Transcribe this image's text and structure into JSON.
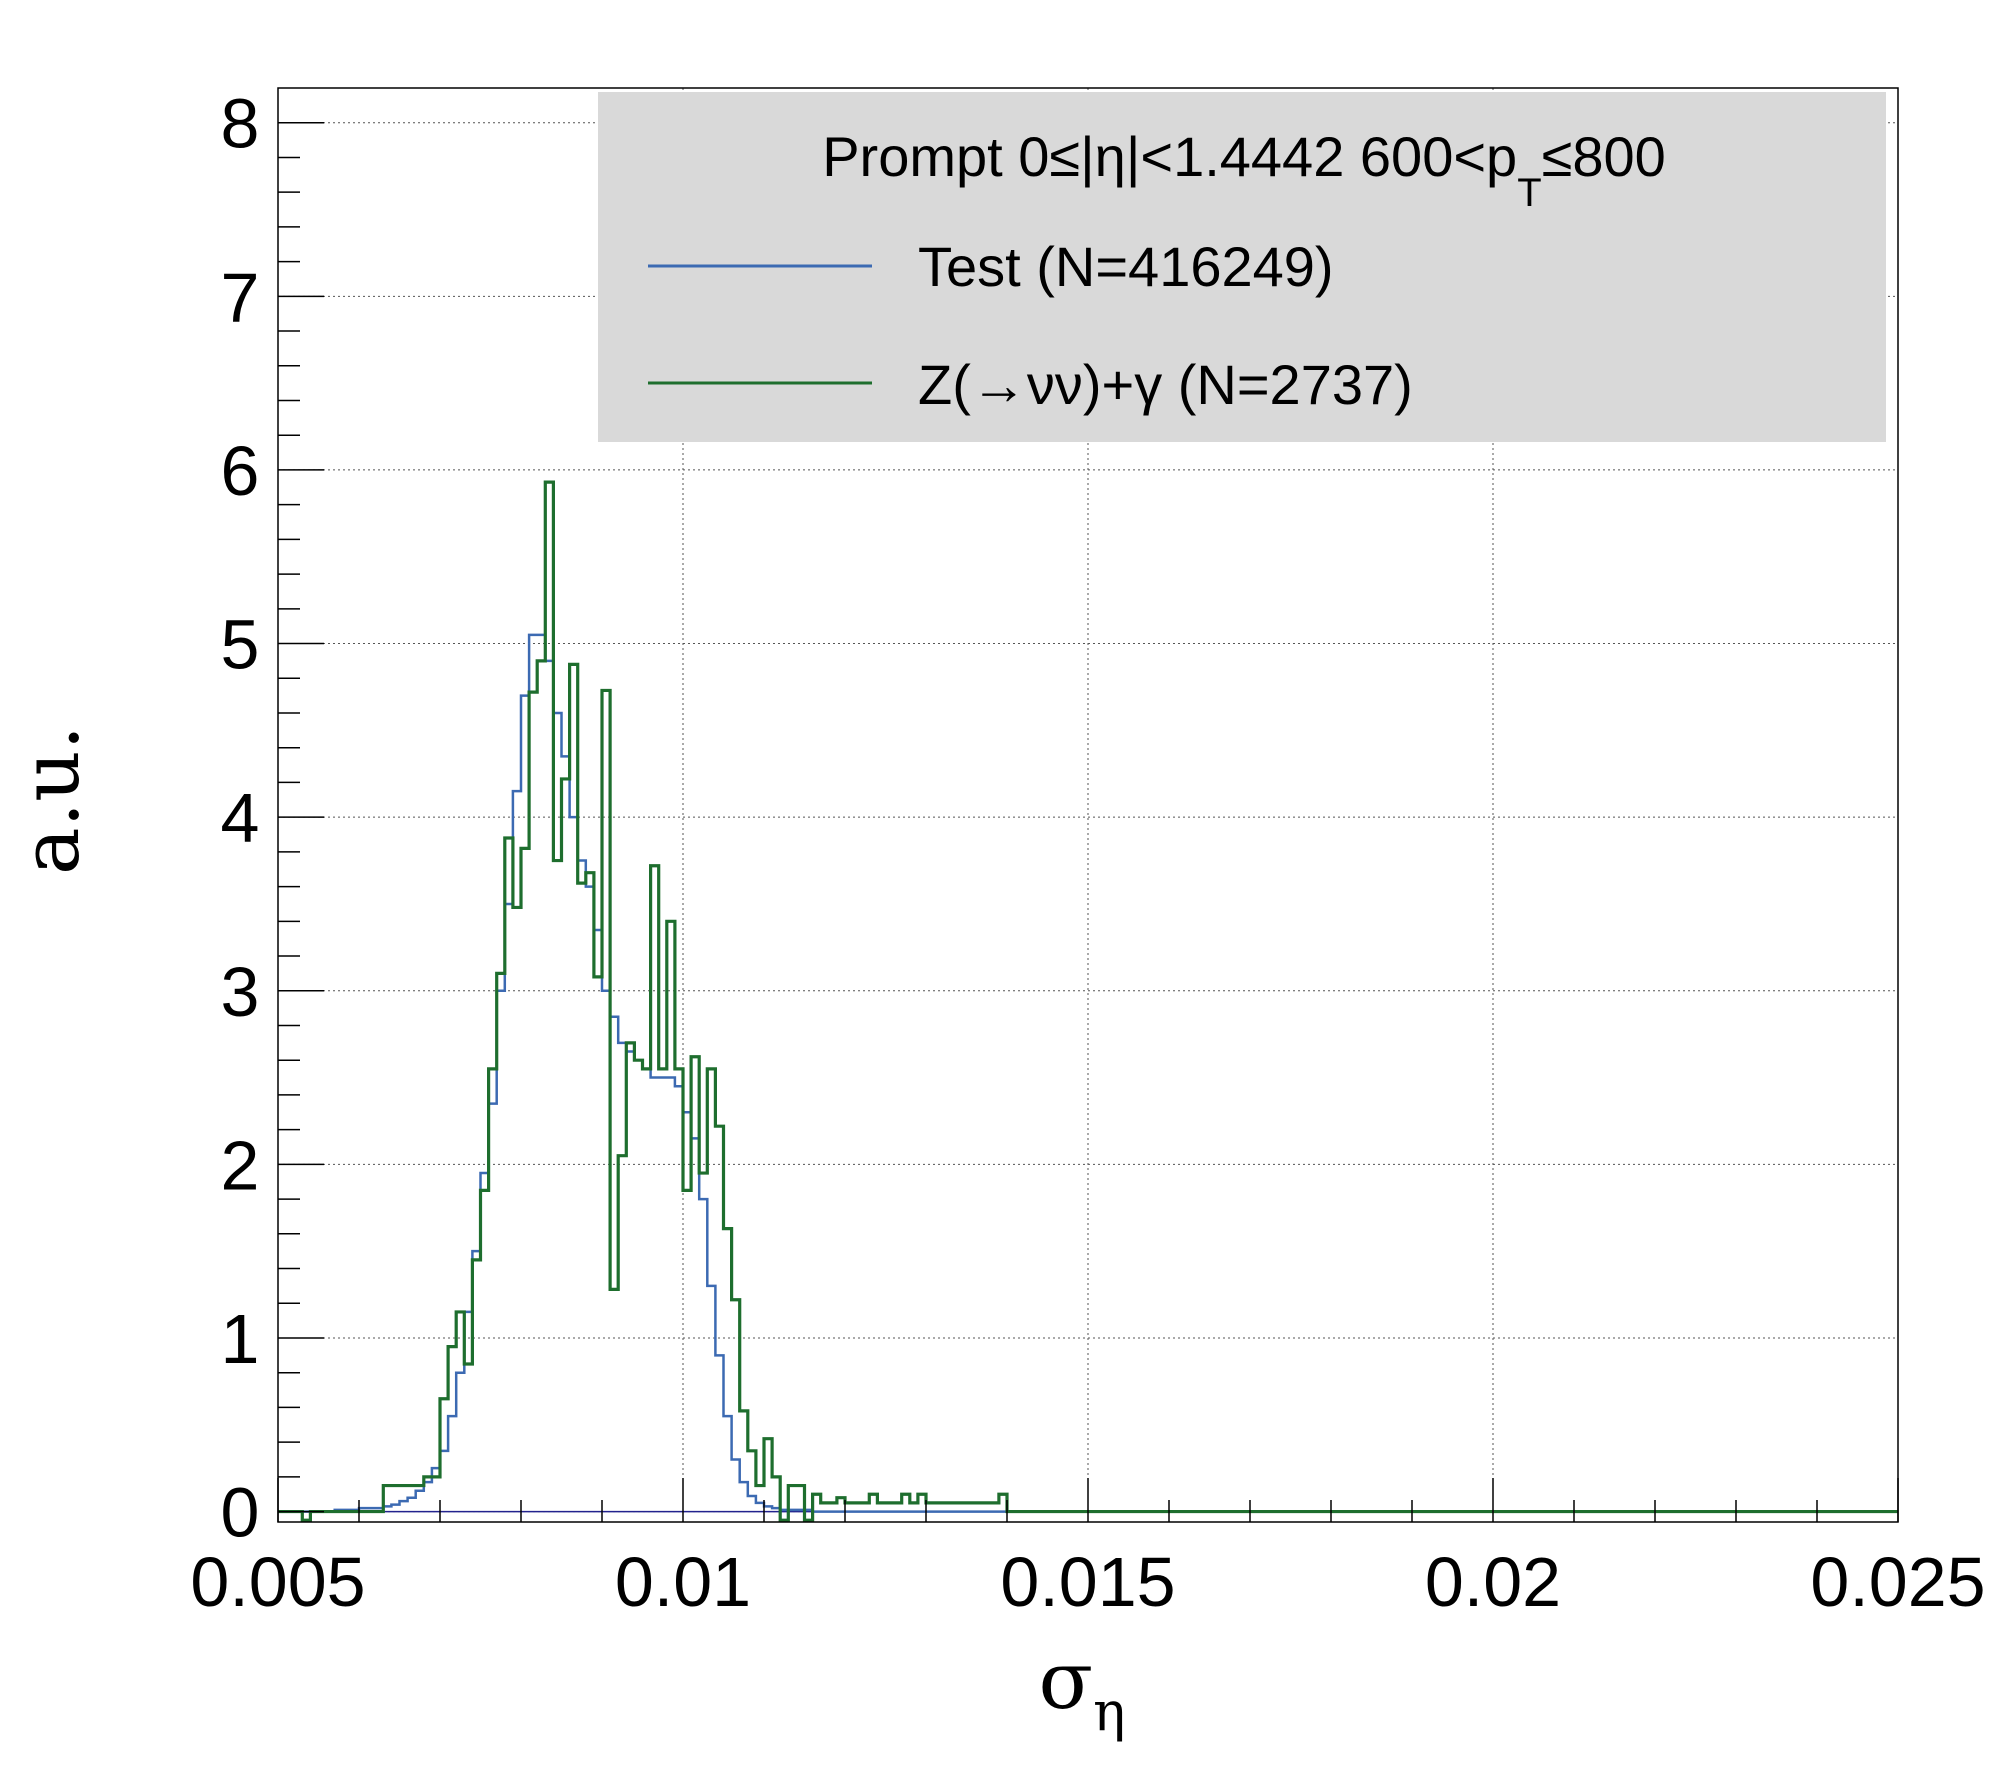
{
  "chart_data": {
    "type": "line",
    "drawstyle": "steps",
    "xlabel": "σ",
    "xlabel_sub": "η",
    "ylabel": "a.u.",
    "xlim": [
      0.005,
      0.025
    ],
    "ylim": [
      -0.06,
      8.2
    ],
    "xticks": [
      0.005,
      0.01,
      0.015,
      0.02,
      0.025
    ],
    "xtick_labels": [
      "0.005",
      "0.01",
      "0.015",
      "0.02",
      "0.025"
    ],
    "yticks": [
      0,
      1,
      2,
      3,
      4,
      5,
      6,
      7,
      8
    ],
    "ytick_labels": [
      "0",
      "1",
      "2",
      "3",
      "4",
      "5",
      "6",
      "7",
      "8"
    ],
    "grid": true,
    "legend": {
      "position": "top-right",
      "header_parts": [
        "Prompt  0≤|η|<1.4442  600<p",
        "T",
        "≤800"
      ],
      "background": "#d9d9d9"
    },
    "bin_edges_start": 0.005,
    "bin_width": 0.0001,
    "series": [
      {
        "name": "Test (N=416249)",
        "color": "#3c6ab2",
        "values": [
          0,
          0,
          0,
          0,
          0,
          0,
          0,
          0.01,
          0.01,
          0.01,
          0.02,
          0.02,
          0.02,
          0.03,
          0.04,
          0.06,
          0.08,
          0.12,
          0.17,
          0.25,
          0.35,
          0.55,
          0.8,
          1.15,
          1.5,
          1.95,
          2.35,
          3.0,
          3.5,
          4.15,
          4.7,
          5.05,
          5.05,
          4.9,
          4.6,
          4.35,
          4.0,
          3.75,
          3.6,
          3.35,
          3.0,
          2.85,
          2.7,
          2.65,
          2.6,
          2.55,
          2.5,
          2.5,
          2.5,
          2.45,
          2.3,
          2.15,
          1.8,
          1.3,
          0.9,
          0.55,
          0.3,
          0.17,
          0.09,
          0.05,
          0.03,
          0.02,
          0.01,
          0.01,
          0.01,
          0.01,
          0,
          0,
          0,
          0
        ]
      },
      {
        "name": "Z(→νν)+γ (N=2737)",
        "color": "#1e6e2e",
        "values": [
          0,
          0,
          0,
          -0.05,
          0,
          0,
          0,
          0,
          0,
          0,
          0,
          0,
          0,
          0.15,
          0.15,
          0.15,
          0.15,
          0.15,
          0.2,
          0.2,
          0.65,
          0.95,
          1.15,
          0.85,
          1.45,
          1.85,
          2.55,
          3.1,
          3.88,
          3.48,
          3.82,
          4.72,
          4.9,
          5.93,
          3.75,
          4.22,
          4.88,
          3.62,
          3.68,
          3.08,
          4.73,
          1.28,
          2.05,
          2.7,
          2.6,
          2.55,
          3.72,
          2.55,
          3.4,
          2.55,
          1.85,
          2.62,
          1.95,
          2.55,
          2.22,
          1.63,
          1.22,
          0.58,
          0.35,
          0.15,
          0.42,
          0.2,
          -0.05,
          0.15,
          0.15,
          -0.05,
          0.1,
          0.05,
          0.05,
          0.08,
          0.05,
          0.05,
          0.05,
          0.1,
          0.05,
          0.05,
          0.05,
          0.1,
          0.05,
          0.1,
          0.05,
          0.05,
          0.05,
          0.05,
          0.05,
          0.05,
          0.05,
          0.05,
          0.05,
          0.1
        ]
      }
    ]
  }
}
